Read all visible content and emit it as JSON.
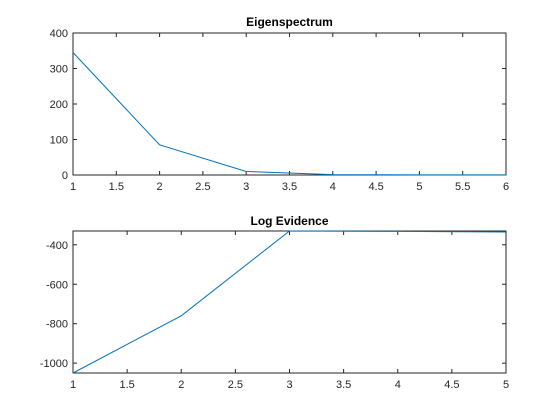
{
  "chart_data": [
    {
      "type": "line",
      "title": "Eigenspectrum",
      "xlabel": "",
      "ylabel": "",
      "x": [
        1,
        2,
        3,
        4,
        5,
        6
      ],
      "series": [
        {
          "values": [
            345,
            85,
            10,
            1,
            0.5,
            0.3
          ]
        }
      ],
      "xlim": [
        1,
        6
      ],
      "ylim": [
        0,
        400
      ],
      "xticks": [
        1,
        1.5,
        2,
        2.5,
        3,
        3.5,
        4,
        4.5,
        5,
        5.5,
        6
      ],
      "xtick_labels": [
        "1",
        "1.5",
        "2",
        "2.5",
        "3",
        "3.5",
        "4",
        "4.5",
        "5",
        "5.5",
        "6"
      ],
      "yticks": [
        0,
        100,
        200,
        300,
        400
      ],
      "ytick_labels": [
        "0",
        "100",
        "200",
        "300",
        "400"
      ],
      "grid": false,
      "color": "#0072BD"
    },
    {
      "type": "line",
      "title": "Log Evidence",
      "xlabel": "",
      "ylabel": "",
      "x": [
        1,
        2,
        3,
        4,
        5
      ],
      "series": [
        {
          "values": [
            -1050,
            -760,
            -330,
            -332,
            -335
          ]
        }
      ],
      "xlim": [
        1,
        5
      ],
      "ylim": [
        -1050,
        -330
      ],
      "xticks": [
        1,
        1.5,
        2,
        2.5,
        3,
        3.5,
        4,
        4.5,
        5
      ],
      "xtick_labels": [
        "1",
        "1.5",
        "2",
        "2.5",
        "3",
        "3.5",
        "4",
        "4.5",
        "5"
      ],
      "yticks": [
        -1000,
        -800,
        -600,
        -400
      ],
      "ytick_labels": [
        "-1000",
        "-800",
        "-600",
        "-400"
      ],
      "grid": false,
      "color": "#0072BD"
    }
  ]
}
